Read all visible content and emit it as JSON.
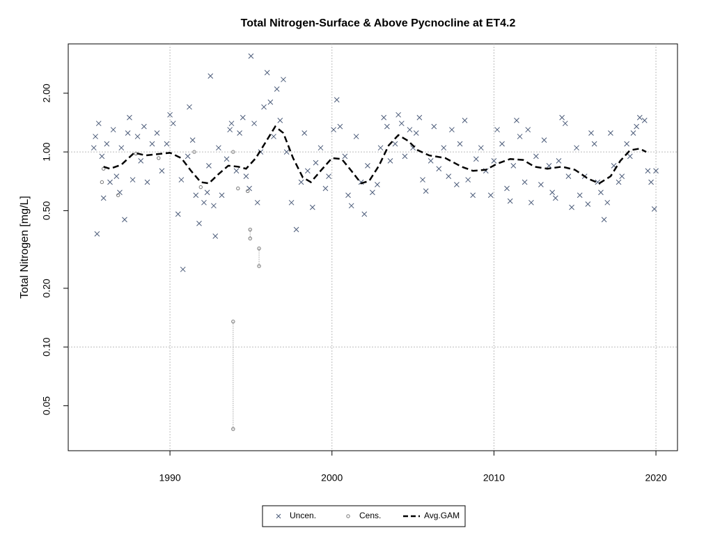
{
  "chart_data": {
    "type": "scatter",
    "title": "Total Nitrogen-Surface & Above Pycnocline at ET4.2",
    "y_label": "Total Nitrogen [mg/L]",
    "log_y": true,
    "xlim": [
      1983.72,
      2021.33
    ],
    "ylim": [
      0.0294,
      3.58
    ],
    "xticks": [
      1990,
      2000,
      2010,
      2020
    ],
    "yticks": [
      0.05,
      {
        "value": 0.1,
        "label": "0.10"
      },
      {
        "value": 0.2,
        "label": "0.20"
      },
      {
        "value": 0.5,
        "label": "0.50"
      },
      {
        "value": 1,
        "label": "1.00"
      },
      {
        "value": 2,
        "label": "2.00"
      }
    ],
    "grid_x": true,
    "grid_y": [
      0.1,
      1
    ],
    "legend": "bottom",
    "series": [
      {
        "name": "Uncen.",
        "color": "#4a5a78",
        "x": [
          1985.3,
          1985.4,
          1985.5,
          1985.6,
          1985.8,
          1985.9,
          1986.1,
          1986.3,
          1986.5,
          1986.7,
          1986.9,
          1987.0,
          1987.2,
          1987.4,
          1987.5,
          1987.7,
          1988.0,
          1988.2,
          1988.4,
          1988.6,
          1988.9,
          1989.2,
          1989.5,
          1989.8,
          1990.0,
          1990.2,
          1990.5,
          1990.7,
          1990.8,
          1991.1,
          1991.2,
          1991.4,
          1991.6,
          1991.8,
          1992.1,
          1992.3,
          1992.4,
          1992.5,
          1992.7,
          1992.8,
          1993.0,
          1993.2,
          1993.5,
          1993.7,
          1993.8,
          1994.1,
          1994.3,
          1994.5,
          1994.7,
          1994.9,
          1995.0,
          1995.2,
          1995.4,
          1995.6,
          1995.8,
          1996.0,
          1996.2,
          1996.4,
          1996.6,
          1996.8,
          1997.0,
          1997.2,
          1997.5,
          1997.8,
          1998.1,
          1998.3,
          1998.5,
          1998.8,
          1999.0,
          1999.3,
          1999.6,
          1999.8,
          2000.1,
          2000.3,
          2000.5,
          2000.8,
          2001.0,
          2001.2,
          2001.5,
          2001.8,
          2002.0,
          2002.2,
          2002.5,
          2002.8,
          2003.0,
          2003.2,
          2003.4,
          2003.6,
          2003.9,
          2004.1,
          2004.3,
          2004.5,
          2004.8,
          2005.0,
          2005.2,
          2005.4,
          2005.6,
          2005.8,
          2006.1,
          2006.3,
          2006.6,
          2006.9,
          2007.2,
          2007.4,
          2007.7,
          2007.9,
          2008.2,
          2008.4,
          2008.7,
          2008.9,
          2009.2,
          2009.5,
          2009.8,
          2010.0,
          2010.2,
          2010.5,
          2010.8,
          2011.0,
          2011.2,
          2011.4,
          2011.6,
          2011.9,
          2012.1,
          2012.3,
          2012.6,
          2012.9,
          2013.1,
          2013.4,
          2013.6,
          2013.8,
          2014.0,
          2014.2,
          2014.4,
          2014.6,
          2014.8,
          2015.1,
          2015.3,
          2015.6,
          2015.8,
          2016.0,
          2016.2,
          2016.4,
          2016.6,
          2016.8,
          2017.0,
          2017.2,
          2017.4,
          2017.7,
          2017.9,
          2018.2,
          2018.4,
          2018.6,
          2018.8,
          2019.0,
          2019.3,
          2019.5,
          2019.7,
          2019.9,
          2020.0
        ],
        "values": [
          1.05,
          1.2,
          0.38,
          1.4,
          0.95,
          0.58,
          1.1,
          0.7,
          1.3,
          0.75,
          0.62,
          1.05,
          0.45,
          1.25,
          1.5,
          0.72,
          1.2,
          0.9,
          1.35,
          0.7,
          1.1,
          1.25,
          0.8,
          1.1,
          1.55,
          1.4,
          0.48,
          0.72,
          0.25,
          0.95,
          1.7,
          1.15,
          0.6,
          0.43,
          0.55,
          0.62,
          0.85,
          2.45,
          0.53,
          0.37,
          1.05,
          0.6,
          0.92,
          1.3,
          1.4,
          0.8,
          1.25,
          1.5,
          0.75,
          0.65,
          3.1,
          1.4,
          0.55,
          1.0,
          1.7,
          2.55,
          1.8,
          1.2,
          2.1,
          1.45,
          2.35,
          1.0,
          0.55,
          0.4,
          0.7,
          1.25,
          0.8,
          0.52,
          0.88,
          1.05,
          0.65,
          0.75,
          1.3,
          1.85,
          1.35,
          0.95,
          0.6,
          0.53,
          1.2,
          0.7,
          0.48,
          0.85,
          0.62,
          0.68,
          1.05,
          1.5,
          1.35,
          0.9,
          1.1,
          1.55,
          1.4,
          0.95,
          1.3,
          1.05,
          1.25,
          1.5,
          0.72,
          0.63,
          0.9,
          1.35,
          0.82,
          1.05,
          0.75,
          1.3,
          0.68,
          1.1,
          1.45,
          0.72,
          0.6,
          0.92,
          1.05,
          0.8,
          0.6,
          0.9,
          1.3,
          1.1,
          0.65,
          0.56,
          0.85,
          1.45,
          1.2,
          0.7,
          1.3,
          0.55,
          0.95,
          0.68,
          1.15,
          0.85,
          0.62,
          0.58,
          0.9,
          1.5,
          1.4,
          0.75,
          0.52,
          1.05,
          0.6,
          0.75,
          0.54,
          1.25,
          1.1,
          0.7,
          0.62,
          0.45,
          0.55,
          1.25,
          0.85,
          0.7,
          0.75,
          1.1,
          0.95,
          1.25,
          1.35,
          1.5,
          1.45,
          0.8,
          0.7,
          0.51,
          0.8
        ]
      },
      {
        "name": "Cens.",
        "color": "#777777",
        "x": [
          1985.8,
          1985.9,
          1986.8,
          1987.9,
          1989.3,
          1991.5,
          1991.9,
          1993.9,
          1993.9,
          1994.2,
          1994.8,
          1994.95,
          1995.5
        ],
        "values": [
          0.7,
          0.82,
          0.6,
          0.98,
          0.93,
          1.0,
          0.66,
          1.0,
          0.135,
          0.65,
          0.63,
          0.4,
          0.32
        ],
        "lower": [
          null,
          null,
          null,
          null,
          null,
          null,
          null,
          null,
          0.038,
          null,
          null,
          0.36,
          0.26
        ]
      },
      {
        "name": "Avg.GAM",
        "color": "#000000",
        "x": [
          1985.9,
          1986.3,
          1987.0,
          1987.8,
          1988.5,
          1989.0,
          1990.0,
          1990.7,
          1991.3,
          1991.9,
          1992.4,
          1993.0,
          1993.6,
          1994.2,
          1994.7,
          1995.3,
          1995.9,
          1996.5,
          1997.0,
          1997.6,
          1998.2,
          1998.7,
          1999.3,
          2000.0,
          2000.6,
          2001.2,
          2001.8,
          2002.3,
          2002.9,
          2003.5,
          2004.1,
          2004.7,
          2005.3,
          2006.0,
          2007.0,
          2008.0,
          2008.7,
          2009.5,
          2010.2,
          2011.0,
          2011.8,
          2012.5,
          2013.3,
          2014.2,
          2015.0,
          2015.8,
          2016.5,
          2017.2,
          2017.8,
          2018.4,
          2019.0,
          2019.4
        ],
        "values": [
          0.84,
          0.82,
          0.86,
          0.99,
          0.96,
          0.97,
          0.99,
          0.93,
          0.8,
          0.7,
          0.69,
          0.77,
          0.85,
          0.84,
          0.82,
          0.93,
          1.12,
          1.35,
          1.25,
          0.93,
          0.74,
          0.7,
          0.8,
          0.93,
          0.92,
          0.8,
          0.69,
          0.71,
          0.85,
          1.08,
          1.22,
          1.14,
          1.02,
          0.96,
          0.93,
          0.84,
          0.8,
          0.81,
          0.87,
          0.92,
          0.91,
          0.84,
          0.82,
          0.84,
          0.81,
          0.73,
          0.69,
          0.75,
          0.9,
          1.02,
          1.04,
          1.0
        ]
      }
    ]
  }
}
